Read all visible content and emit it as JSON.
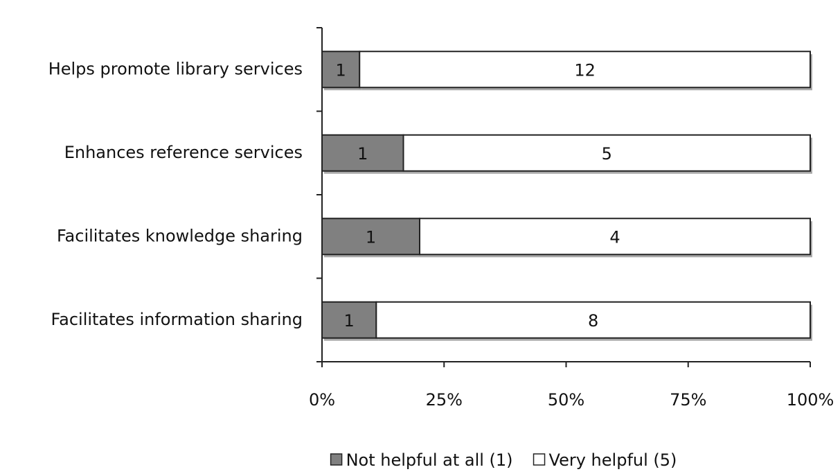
{
  "chart_data": {
    "type": "bar",
    "orientation": "horizontal",
    "stacking": "percent",
    "categories": [
      "Helps promote library services",
      "Enhances reference services",
      "Facilitates knowledge sharing",
      "Facilitates information sharing"
    ],
    "series": [
      {
        "name": "Not helpful at all (1)",
        "color": "#808080",
        "values": [
          1,
          1,
          1,
          1
        ]
      },
      {
        "name": "Very helpful (5)",
        "color": "#ffffff",
        "values": [
          12,
          5,
          4,
          8
        ]
      }
    ],
    "xlim": [
      0,
      100
    ],
    "xticks": [
      {
        "value": 0,
        "label": "0%"
      },
      {
        "value": 25,
        "label": "25%"
      },
      {
        "value": 50,
        "label": "50%"
      },
      {
        "value": 75,
        "label": "75%"
      },
      {
        "value": 100,
        "label": "100%"
      }
    ],
    "legend": "bottom"
  }
}
